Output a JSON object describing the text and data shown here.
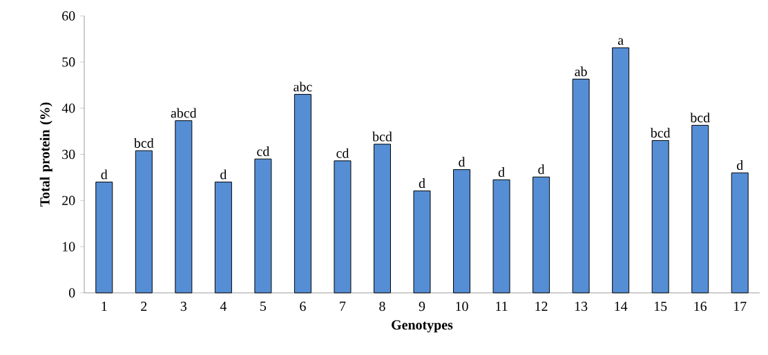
{
  "chart_data": {
    "type": "bar",
    "xlabel": "Genotypes",
    "ylabel": "Total protein (%)",
    "categories": [
      "1",
      "2",
      "3",
      "4",
      "5",
      "6",
      "7",
      "8",
      "9",
      "10",
      "11",
      "12",
      "13",
      "14",
      "15",
      "16",
      "17"
    ],
    "values": [
      24.0,
      30.8,
      37.3,
      24.0,
      29.0,
      43.0,
      28.6,
      32.2,
      22.1,
      26.7,
      24.5,
      25.1,
      46.3,
      53.1,
      33.0,
      36.3,
      26.0
    ],
    "color": "#558ed5",
    "ylim": [
      0,
      60
    ],
    "yticks": [
      0,
      10,
      20,
      30,
      40,
      50,
      60
    ],
    "annotations": [
      {
        "text": "d",
        "x": "1",
        "y": 24.0
      },
      {
        "text": "bcd",
        "x": "2",
        "y": 30.8
      },
      {
        "text": "abcd",
        "x": "3",
        "y": 37.3
      },
      {
        "text": "d",
        "x": "4",
        "y": 24.0
      },
      {
        "text": "cd",
        "x": "5",
        "y": 29.0
      },
      {
        "text": "abc",
        "x": "6",
        "y": 43.0
      },
      {
        "text": "cd",
        "x": "7",
        "y": 28.6
      },
      {
        "text": "bcd",
        "x": "8",
        "y": 32.2
      },
      {
        "text": "d",
        "x": "9",
        "y": 22.1
      },
      {
        "text": "d",
        "x": "10",
        "y": 26.7
      },
      {
        "text": "d",
        "x": "11",
        "y": 24.5
      },
      {
        "text": "d",
        "x": "12",
        "y": 25.1
      },
      {
        "text": "ab",
        "x": "13",
        "y": 46.3
      },
      {
        "text": "a",
        "x": "14",
        "y": 53.1
      },
      {
        "text": "bcd",
        "x": "15",
        "y": 33.0
      },
      {
        "text": "bcd",
        "x": "16",
        "y": 36.3
      },
      {
        "text": "d",
        "x": "17",
        "y": 26.0
      }
    ]
  }
}
